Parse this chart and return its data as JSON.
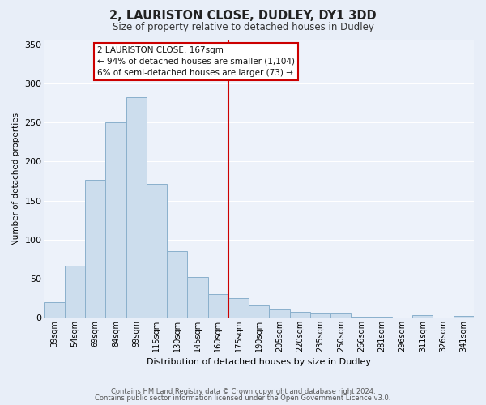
{
  "title": "2, LAURISTON CLOSE, DUDLEY, DY1 3DD",
  "subtitle": "Size of property relative to detached houses in Dudley",
  "xlabel": "Distribution of detached houses by size in Dudley",
  "ylabel": "Number of detached properties",
  "bar_labels": [
    "39sqm",
    "54sqm",
    "69sqm",
    "84sqm",
    "99sqm",
    "115sqm",
    "130sqm",
    "145sqm",
    "160sqm",
    "175sqm",
    "190sqm",
    "205sqm",
    "220sqm",
    "235sqm",
    "250sqm",
    "266sqm",
    "281sqm",
    "296sqm",
    "311sqm",
    "326sqm",
    "341sqm"
  ],
  "bar_values": [
    20,
    66,
    176,
    250,
    282,
    171,
    85,
    52,
    30,
    25,
    16,
    10,
    7,
    5,
    5,
    1,
    1,
    0,
    3,
    0,
    2
  ],
  "bar_color": "#ccdded",
  "bar_edge_color": "#8ab0cc",
  "vline_color": "#cc0000",
  "annotation_title": "2 LAURISTON CLOSE: 167sqm",
  "annotation_line1": "← 94% of detached houses are smaller (1,104)",
  "annotation_line2": "6% of semi-detached houses are larger (73) →",
  "annotation_box_color": "#cc0000",
  "ylim": [
    0,
    355
  ],
  "yticks": [
    0,
    50,
    100,
    150,
    200,
    250,
    300,
    350
  ],
  "footer_line1": "Contains HM Land Registry data © Crown copyright and database right 2024.",
  "footer_line2": "Contains public sector information licensed under the Open Government Licence v3.0.",
  "bg_color": "#e8eef8",
  "plot_bg_color": "#edf2fa",
  "grid_color": "#ffffff"
}
